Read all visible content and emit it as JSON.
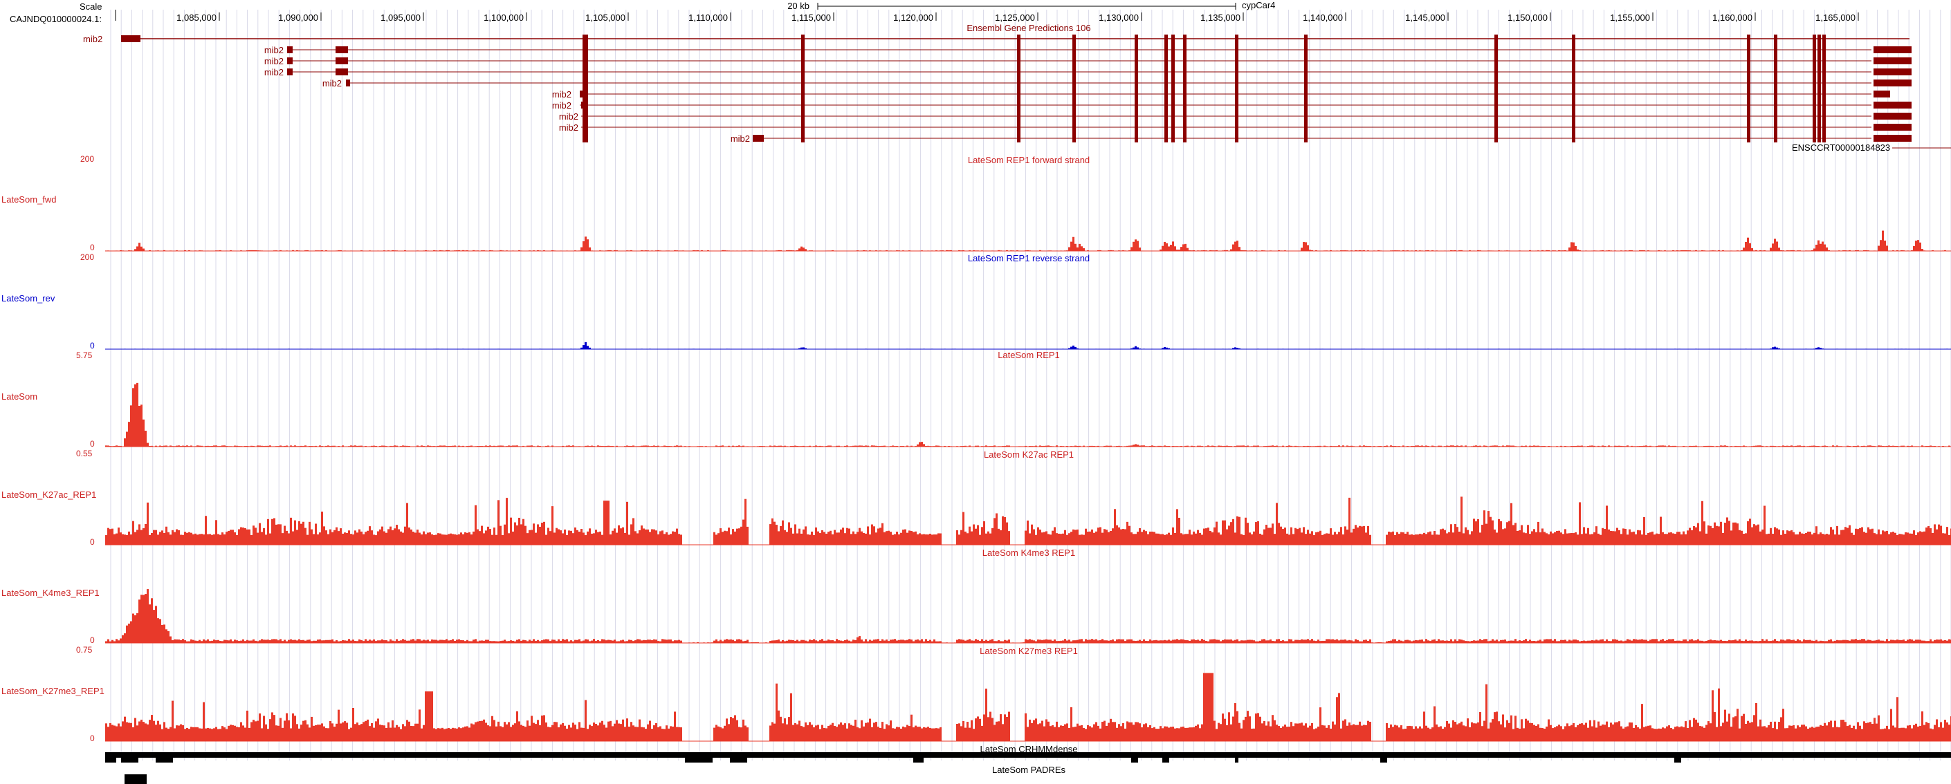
{
  "colors": {
    "gene": "#8b0000",
    "signal_red": "#e8392a",
    "signal_blue": "#0000cc",
    "track_label_red": "#cc2222",
    "track_label_blue": "#0000cc",
    "grid": "#d8d8e8"
  },
  "ruler": {
    "scale_label": "Scale",
    "chrom_label": "CAJNDQ010000024.1:",
    "scalebar_label": "20 kb",
    "assembly_label": "cypCar4",
    "ticks": [
      "1,085,000",
      "1,090,000",
      "1,095,000",
      "1,100,000",
      "1,105,000",
      "1,110,000",
      "1,115,000",
      "1,120,000",
      "1,125,000",
      "1,130,000",
      "1,135,000",
      "1,140,000",
      "1,145,000",
      "1,150,000",
      "1,155,000",
      "1,160,000",
      "1,165,000"
    ]
  },
  "gene_track": {
    "title": "Ensembl Gene Predictions 106",
    "left_label": "mib2",
    "transcripts": [
      {
        "label": "mib2"
      },
      {
        "label": "mib2"
      },
      {
        "label": "mib2"
      },
      {
        "label": "mib2"
      },
      {
        "label": "mib2"
      },
      {
        "label": "mib2"
      },
      {
        "label": "mib2"
      },
      {
        "label": "mib2"
      },
      {
        "label": "mib2"
      }
    ],
    "extra_transcript": "ENSCCRT00000184823"
  },
  "tracks": [
    {
      "id": "fwd",
      "title": "LateSom REP1 forward strand",
      "label": "LateSom_fwd",
      "max": "200",
      "min": "0",
      "color": "red"
    },
    {
      "id": "rev",
      "title": "LateSom REP1 reverse strand",
      "label": "LateSom_rev",
      "max": "200",
      "min": "0",
      "color": "blue"
    },
    {
      "id": "latesom",
      "title": "LateSom REP1",
      "label": "LateSom",
      "max": "5.75",
      "min": "0",
      "color": "red"
    },
    {
      "id": "k27ac",
      "title": "LateSom K27ac REP1",
      "label": "LateSom_K27ac_REP1",
      "max": "0.55",
      "min": "0",
      "color": "red"
    },
    {
      "id": "k4me3",
      "title": "LateSom K4me3 REP1",
      "label": "LateSom_K4me3_REP1",
      "max": "",
      "min": "0",
      "color": "red"
    },
    {
      "id": "k27me3",
      "title": "LateSom K27me3 REP1",
      "label": "LateSom_K27me3_REP1",
      "max": "0.75",
      "min": "0",
      "color": "red"
    }
  ],
  "crhmm": {
    "title": "LateSom CRHMMdense"
  },
  "padres": {
    "title": "LateSom PADREs"
  }
}
